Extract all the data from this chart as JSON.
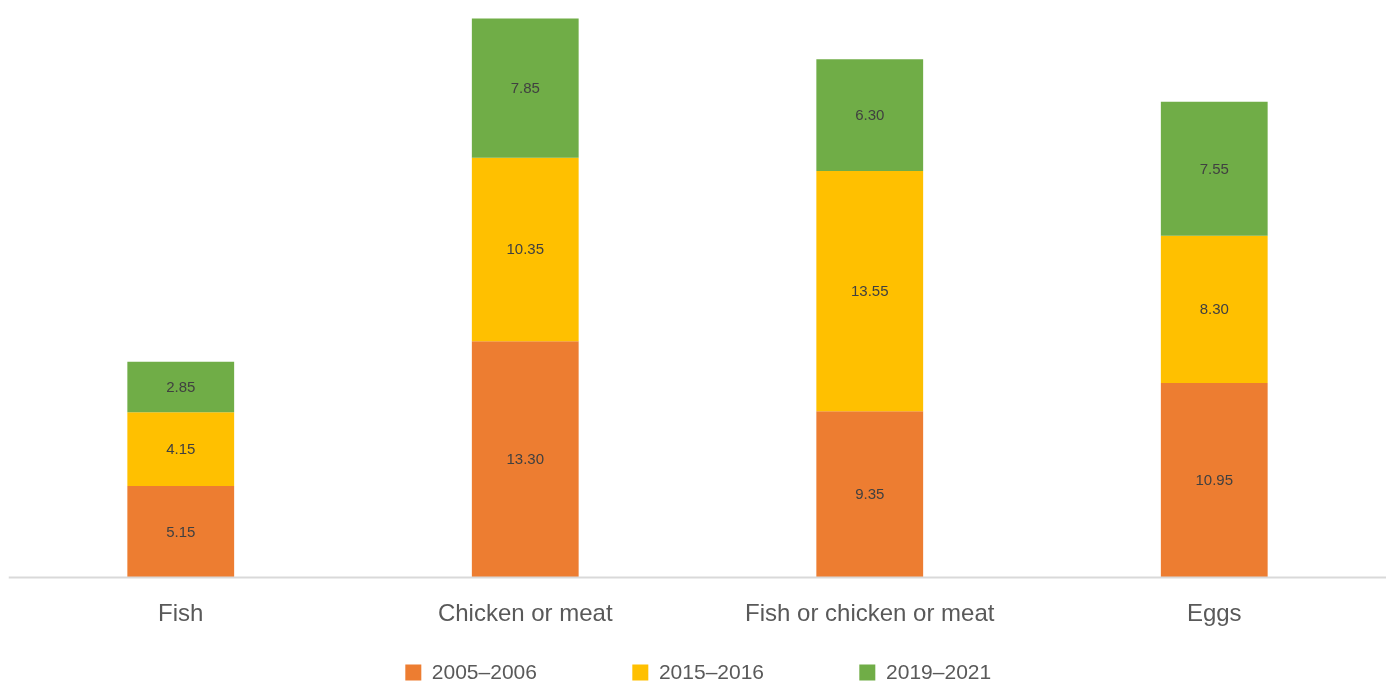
{
  "chart_data": {
    "type": "bar",
    "stacked": true,
    "categories": [
      "Fish",
      "Chicken or meat",
      "Fish or chicken or meat",
      "Eggs"
    ],
    "series": [
      {
        "name": "2005–2006",
        "color": "#ed7d31",
        "values": [
          5.15,
          13.3,
          9.35,
          10.95
        ],
        "value_labels": [
          "5.15",
          "13.30",
          "9.35",
          "10.95"
        ]
      },
      {
        "name": "2015–2016",
        "color": "#ffc000",
        "values": [
          4.15,
          10.35,
          13.55,
          8.3
        ],
        "value_labels": [
          "4.15",
          "10.35",
          "13.55",
          "8.30"
        ]
      },
      {
        "name": "2019–2021",
        "color": "#70ad47",
        "values": [
          2.85,
          7.85,
          6.3,
          7.55
        ],
        "value_labels": [
          "2.85",
          "7.85",
          "6.30",
          "7.55"
        ]
      }
    ],
    "legend": "bottom"
  }
}
